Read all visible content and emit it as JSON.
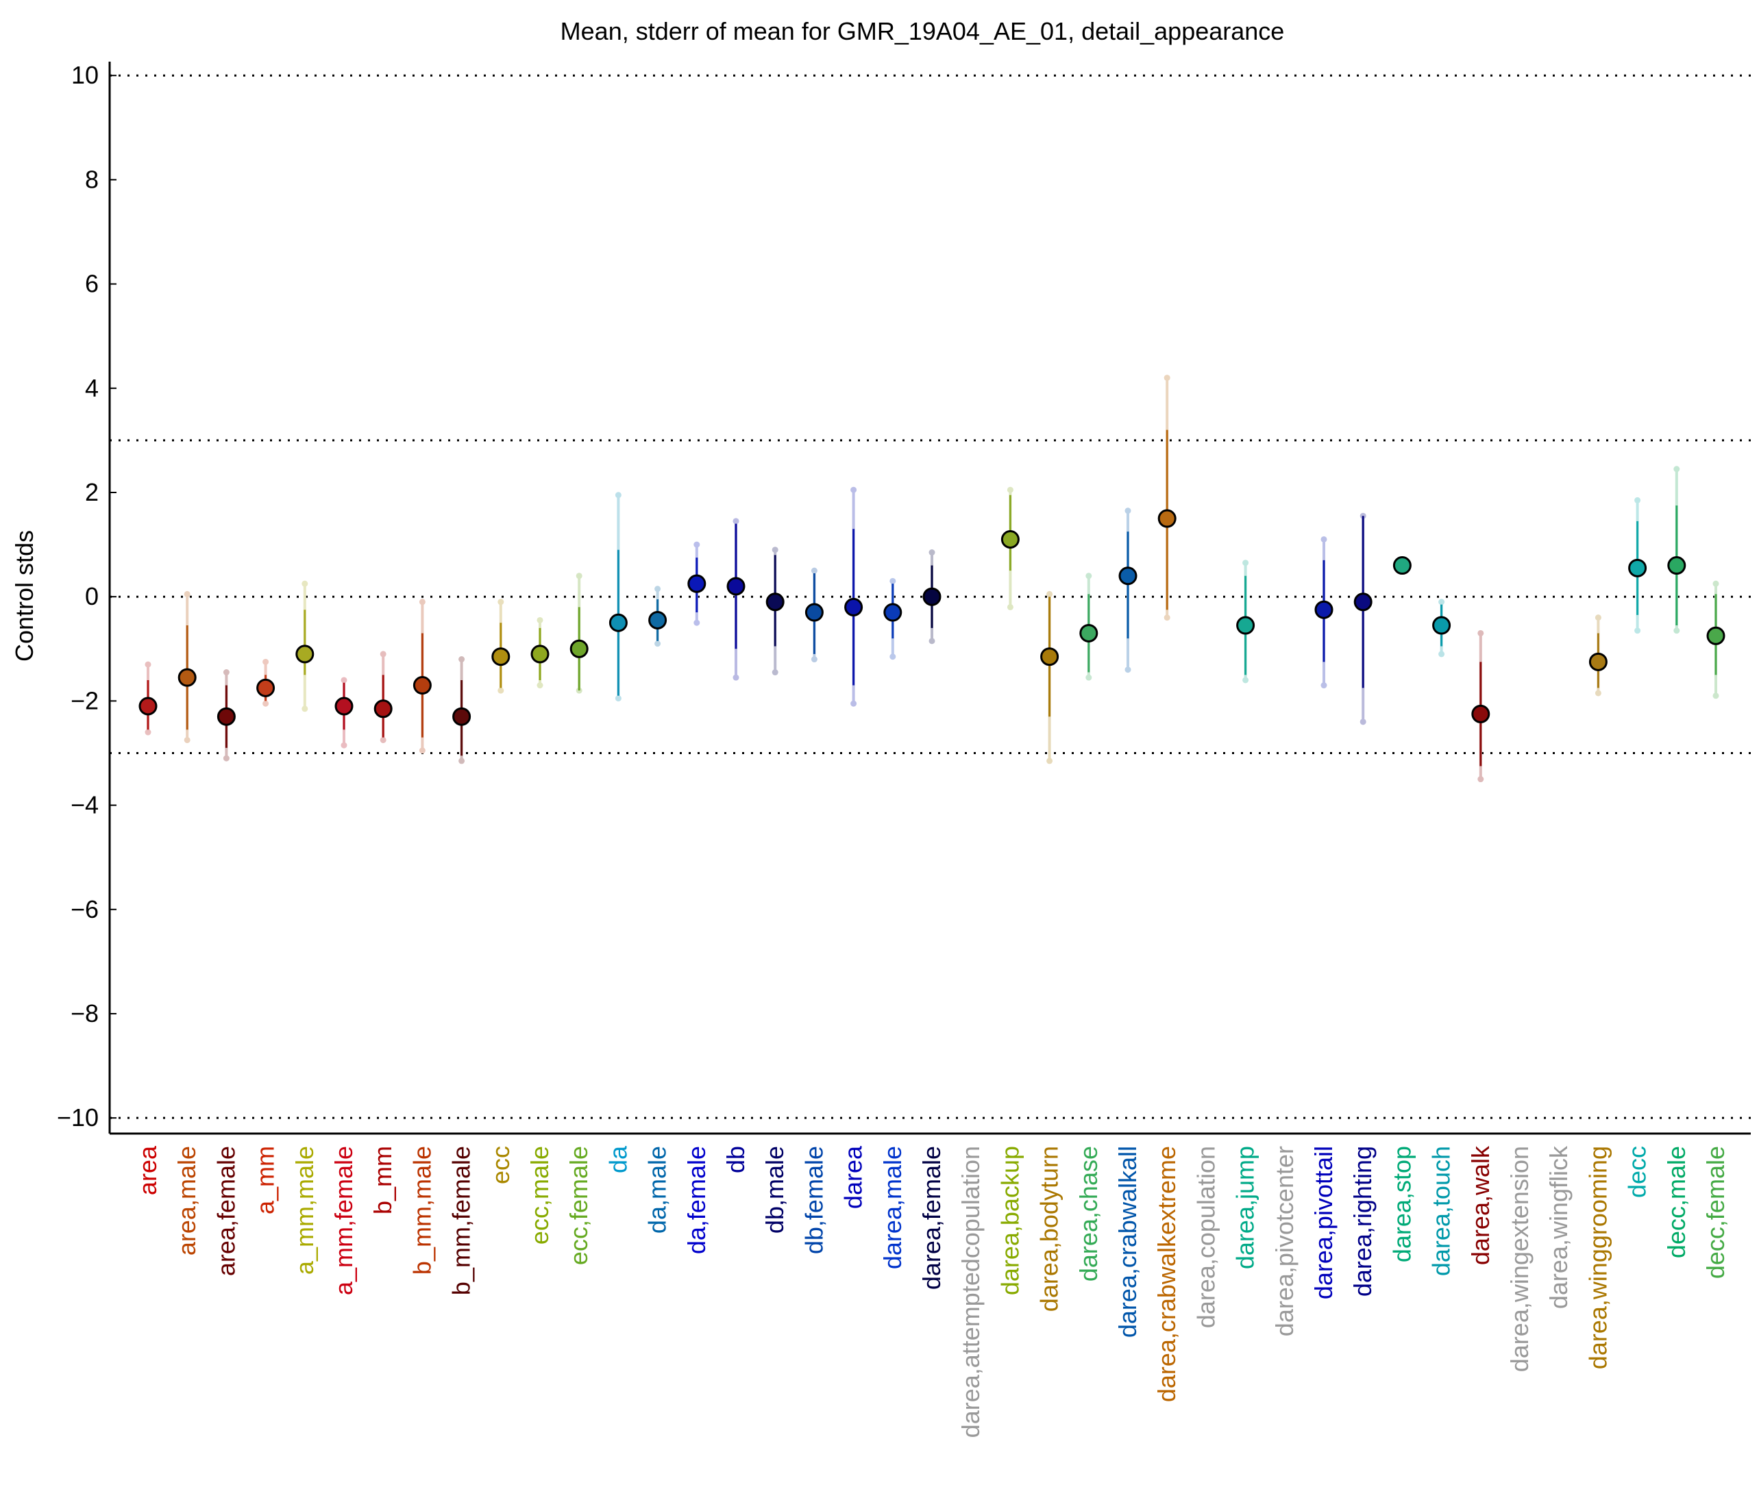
{
  "chart_data": {
    "type": "scatter",
    "title": "Mean, stderr of mean for GMR_19A04_AE_01, detail_appearance",
    "xlabel": "",
    "ylabel": "Control stds",
    "ylim": [
      -10.3,
      10.2
    ],
    "yticks": [
      -10,
      -8,
      -6,
      -4,
      -2,
      0,
      2,
      4,
      6,
      8,
      10
    ],
    "ytick_labels": [
      "−10",
      "−8",
      "−6",
      "−4",
      "−2",
      "0",
      "2",
      "4",
      "6",
      "8",
      "10"
    ],
    "reference_lines": [
      -10,
      -3,
      0,
      3,
      10
    ],
    "grid": false,
    "legend": "none",
    "categories": [
      "area",
      "area,male",
      "area,female",
      "a_mm",
      "a_mm,male",
      "a_mm,female",
      "b_mm",
      "b_mm,male",
      "b_mm,female",
      "ecc",
      "ecc,male",
      "ecc,female",
      "da",
      "da,male",
      "da,female",
      "db",
      "db,male",
      "db,female",
      "darea",
      "darea,male",
      "darea,female",
      "darea,attemptedcopulation",
      "darea,backup",
      "darea,bodyturn",
      "darea,chase",
      "darea,crabwalkall",
      "darea,crabwalkextreme",
      "darea,copulation",
      "darea,jump",
      "darea,pivotcenter",
      "darea,pivottail",
      "darea,righting",
      "darea,stop",
      "darea,touch",
      "darea,walk",
      "darea,wingextension",
      "darea,wingflick",
      "darea,winggrooming",
      "decc",
      "decc,male",
      "decc,female"
    ],
    "label_colors": [
      "#cc0000",
      "#bb4400",
      "#660000",
      "#cc2200",
      "#aaaa00",
      "#cc0011",
      "#aa0000",
      "#bb3300",
      "#550000",
      "#aa8800",
      "#88aa00",
      "#66aa22",
      "#0099cc",
      "#0066aa",
      "#0000cc",
      "#000099",
      "#000066",
      "#0044aa",
      "#0000bb",
      "#0033cc",
      "#000044",
      "#999999",
      "#88aa00",
      "#aa7700",
      "#33aa55",
      "#0055aa",
      "#bb6600",
      "#999999",
      "#00aa88",
      "#999999",
      "#0000bb",
      "#000088",
      "#00aa77",
      "#0099aa",
      "#880000",
      "#999999",
      "#999999",
      "#aa7700",
      "#00aaaa",
      "#00aa66",
      "#44aa44"
    ],
    "series": [
      {
        "means": [
          -2.1,
          -1.55,
          -2.3,
          -1.75,
          -1.1,
          -2.1,
          -2.15,
          -1.7,
          -2.3,
          -1.15,
          -1.1,
          -1.0,
          -0.5,
          -0.45,
          0.25,
          0.2,
          -0.1,
          -0.3,
          -0.2,
          -0.3,
          0.0,
          null,
          1.1,
          -1.15,
          -0.7,
          0.4,
          1.5,
          null,
          -0.55,
          null,
          -0.25,
          -0.1,
          0.6,
          -0.55,
          -2.25,
          null,
          null,
          -1.25,
          0.55,
          0.6,
          -0.75
        ],
        "err_low": [
          -2.55,
          -2.55,
          -2.9,
          -2.0,
          -1.5,
          -2.55,
          -2.7,
          -2.7,
          -3.05,
          -1.75,
          -1.6,
          -1.8,
          -1.9,
          -0.85,
          -0.3,
          -1.0,
          -0.95,
          -1.1,
          -1.7,
          -0.8,
          -0.6,
          null,
          0.5,
          -2.3,
          -1.45,
          -0.8,
          -0.25,
          null,
          -1.5,
          null,
          -1.25,
          -1.75,
          0.55,
          -0.95,
          -3.25,
          null,
          null,
          -1.75,
          -0.35,
          -0.55,
          -1.5
        ],
        "err_high": [
          -1.6,
          -0.55,
          -1.7,
          -1.5,
          -0.25,
          -1.65,
          -1.5,
          -0.7,
          -1.6,
          -0.5,
          -0.6,
          -0.2,
          0.9,
          -0.05,
          0.75,
          1.4,
          0.8,
          0.45,
          1.3,
          0.25,
          0.6,
          null,
          1.95,
          0.0,
          0.05,
          1.25,
          3.2,
          null,
          0.4,
          null,
          0.7,
          1.55,
          0.65,
          -0.15,
          -1.25,
          null,
          null,
          -0.7,
          1.45,
          1.75,
          0.05
        ],
        "ext_low": [
          -2.6,
          -2.75,
          -3.1,
          -2.05,
          -2.15,
          -2.85,
          -2.75,
          -2.95,
          -3.15,
          -1.8,
          -1.7,
          -1.8,
          -1.95,
          -0.9,
          -0.5,
          -1.55,
          -1.45,
          -1.2,
          -2.05,
          -1.15,
          -0.85,
          null,
          -0.2,
          -3.15,
          -1.55,
          -1.4,
          -0.4,
          null,
          -1.6,
          null,
          -1.7,
          -2.4,
          0.6,
          -1.1,
          -3.5,
          null,
          null,
          -1.85,
          -0.65,
          -0.65,
          -1.9
        ],
        "ext_high": [
          -1.3,
          0.05,
          -1.45,
          -1.25,
          0.25,
          -1.6,
          -1.1,
          -0.1,
          -1.2,
          -0.1,
          -0.45,
          0.4,
          1.95,
          0.15,
          1.0,
          1.45,
          0.9,
          0.5,
          2.05,
          0.3,
          0.85,
          null,
          2.05,
          0.05,
          0.4,
          1.65,
          4.2,
          null,
          0.65,
          null,
          1.1,
          1.55,
          0.65,
          -0.1,
          -0.7,
          null,
          null,
          -0.4,
          1.85,
          2.45,
          0.25
        ],
        "marker_colors": [
          "#b21a1a",
          "#b35a12",
          "#6e0808",
          "#c23d1a",
          "#a8aa22",
          "#b31020",
          "#a51212",
          "#b33d0e",
          "#5c0a0a",
          "#b08e10",
          "#8fa820",
          "#6ea52a",
          "#0f8fb3",
          "#0f6aa3",
          "#0a18b8",
          "#0a0a9a",
          "#0a0a55",
          "#0a4aa0",
          "#0a14aa",
          "#0a3bb8",
          "#050540",
          null,
          "#8aa824",
          "#a87a0a",
          "#3ca860",
          "#0a5ca8",
          "#b86a12",
          null,
          "#16a892",
          null,
          "#0a1aaa",
          "#0a0a80",
          "#20a880",
          "#0a9aaa",
          "#8a0a0a",
          null,
          null,
          "#a87a14",
          "#10a8a8",
          "#2aa862",
          "#4aa84a"
        ]
      }
    ]
  }
}
